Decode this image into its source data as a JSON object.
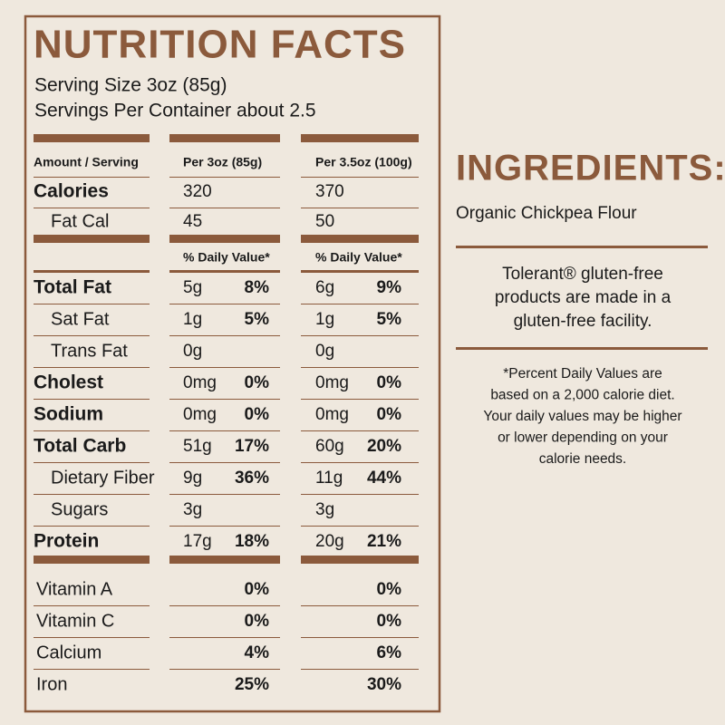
{
  "header": {
    "title": "NUTRITION FACTS",
    "serving_size": "Serving Size 3oz (85g)",
    "servings_per_container": "Servings Per Container about 2.5"
  },
  "table": {
    "columns": [
      "Amount / Serving",
      "Per 3oz (85g)",
      "Per 3.5oz (100g)"
    ],
    "calorie_rows": [
      [
        "Calories",
        "320",
        "370"
      ],
      [
        "Fat Cal",
        "45",
        "50"
      ]
    ],
    "daily_value_header": [
      "% Daily Value*",
      "% Daily Value*"
    ],
    "rows": [
      [
        "Total Fat",
        "5g",
        "8%",
        "6g",
        "9%"
      ],
      [
        "Sat Fat",
        "1g",
        "5%",
        "1g",
        "5%"
      ],
      [
        "Trans Fat",
        "0g",
        null,
        "0g",
        null
      ],
      [
        "Cholest",
        "0mg",
        "0%",
        "0mg",
        "0%"
      ],
      [
        "Sodium",
        "0mg",
        "0%",
        "0mg",
        "0%"
      ],
      [
        "Total Carb",
        "51g",
        "17%",
        "60g",
        "20%"
      ],
      [
        "Dietary Fiber",
        "9g",
        "36%",
        "11g",
        "44%"
      ],
      [
        "Sugars",
        "3g",
        null,
        "3g",
        null
      ],
      [
        "Protein",
        "17g",
        "18%",
        "20g",
        "21%"
      ]
    ],
    "vitamins": [
      [
        "Vitamin A",
        "0%",
        "0%"
      ],
      [
        "Vitamin C",
        "0%",
        "0%"
      ],
      [
        "Calcium",
        "4%",
        "6%"
      ],
      [
        "Iron",
        "25%",
        "30%"
      ]
    ]
  },
  "ingredients": {
    "title": "INGREDIENTS:",
    "text": "Organic Chickpea Flour"
  },
  "note": [
    "Tolerant® gluten-free",
    "products are made in a",
    "gluten-free facility."
  ],
  "footnote": [
    "*Percent Daily Values are",
    "based on  a 2,000 calorie diet.",
    "Your daily values may be higher",
    "or lower depending on your",
    "calorie needs."
  ]
}
